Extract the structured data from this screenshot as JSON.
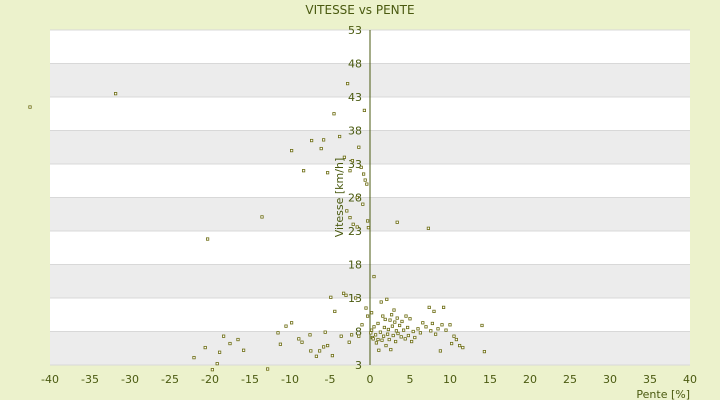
{
  "chart_data": {
    "type": "scatter",
    "title": "VITESSE vs PENTE",
    "xlabel": "Pente [%]",
    "ylabel": "Vitesse [km/h]",
    "xlim": [
      -40,
      40
    ],
    "ylim": [
      3,
      53
    ],
    "x_ticks": [
      -40,
      -35,
      -30,
      -25,
      -20,
      -15,
      -10,
      -5,
      0,
      5,
      10,
      15,
      20,
      25,
      30,
      35,
      40
    ],
    "y_ticks": [
      3,
      8,
      13,
      18,
      23,
      28,
      33,
      38,
      43,
      48,
      53
    ],
    "grid": true,
    "marker_color": "#6b6b10",
    "band_color": "#ececec",
    "points": [
      [
        -42.5,
        41.5
      ],
      [
        -31.8,
        43.5
      ],
      [
        -20.3,
        21.8
      ],
      [
        -13.5,
        25.1
      ],
      [
        -22,
        4.1
      ],
      [
        -20.6,
        5.6
      ],
      [
        -19.7,
        2.3
      ],
      [
        -19.1,
        3.2
      ],
      [
        -18.8,
        4.9
      ],
      [
        -18.3,
        7.3
      ],
      [
        -17.5,
        6.2
      ],
      [
        -16.5,
        6.8
      ],
      [
        -15.8,
        5.2
      ],
      [
        -12.8,
        2.4
      ],
      [
        -11.5,
        7.8
      ],
      [
        -11.2,
        6.1
      ],
      [
        -10.5,
        8.8
      ],
      [
        -9.8,
        9.3
      ],
      [
        -8.9,
        6.9
      ],
      [
        -8.5,
        6.4
      ],
      [
        -7.5,
        7.5
      ],
      [
        -7.4,
        5.1
      ],
      [
        -6.7,
        4.3
      ],
      [
        -6.3,
        5.1
      ],
      [
        -5.8,
        5.7
      ],
      [
        -5.3,
        5.9
      ],
      [
        -5.6,
        7.9
      ],
      [
        -4.7,
        4.4
      ],
      [
        -4.4,
        11
      ],
      [
        -4.9,
        13.1
      ],
      [
        -3.3,
        13.7
      ],
      [
        -3.6,
        7.3
      ],
      [
        -3,
        13.4
      ],
      [
        -2.6,
        6.4
      ],
      [
        -2.3,
        7.5
      ],
      [
        -1.8,
        13
      ],
      [
        -1.4,
        7.3
      ],
      [
        -1,
        9
      ],
      [
        -0.5,
        11.5
      ],
      [
        0.5,
        16.2
      ],
      [
        -0.3,
        10.3
      ],
      [
        0.2,
        10.8
      ],
      [
        -9.8,
        35
      ],
      [
        -8.3,
        32
      ],
      [
        -7.3,
        36.5
      ],
      [
        -6.1,
        35.3
      ],
      [
        -5.8,
        36.6
      ],
      [
        -5.3,
        31.7
      ],
      [
        -4.5,
        40.5
      ],
      [
        -3.8,
        37.1
      ],
      [
        -3.2,
        34
      ],
      [
        -2.8,
        45
      ],
      [
        -2.5,
        32
      ],
      [
        -2.2,
        33.5
      ],
      [
        -2.9,
        26
      ],
      [
        -2.5,
        25
      ],
      [
        -2.1,
        24
      ],
      [
        -1.6,
        28
      ],
      [
        -1.6,
        23.6
      ],
      [
        -1.4,
        35.5
      ],
      [
        -1.1,
        32.5
      ],
      [
        -0.8,
        31.5
      ],
      [
        -0.6,
        30.6
      ],
      [
        -0.4,
        30
      ],
      [
        -0.7,
        41
      ],
      [
        -0.3,
        24.5
      ],
      [
        -0.2,
        23.5
      ],
      [
        -0.9,
        27
      ],
      [
        3.4,
        24.3
      ],
      [
        7.3,
        23.4
      ],
      [
        0.1,
        7.8
      ],
      [
        0.2,
        8.2
      ],
      [
        0.3,
        7.1
      ],
      [
        0.4,
        6.9
      ],
      [
        0.5,
        8.7
      ],
      [
        0.7,
        7.5
      ],
      [
        0.8,
        6.3
      ],
      [
        1,
        9.2
      ],
      [
        1,
        6.8
      ],
      [
        1.1,
        5.2
      ],
      [
        1.3,
        7.9
      ],
      [
        1.4,
        12.4
      ],
      [
        1.5,
        6.7
      ],
      [
        1.6,
        10.3
      ],
      [
        1.7,
        7.3
      ],
      [
        1.8,
        8.6
      ],
      [
        1.9,
        9.8
      ],
      [
        2,
        5.9
      ],
      [
        2.1,
        12.8
      ],
      [
        2.2,
        7.6
      ],
      [
        2.3,
        8.3
      ],
      [
        2.4,
        6.8
      ],
      [
        2.5,
        9.7
      ],
      [
        2.6,
        5.3
      ],
      [
        2.7,
        10.5
      ],
      [
        2.8,
        8.8
      ],
      [
        2.9,
        7.4
      ],
      [
        3,
        11.2
      ],
      [
        3.1,
        9.4
      ],
      [
        3.2,
        6.5
      ],
      [
        3.3,
        8.1
      ],
      [
        3.4,
        10
      ],
      [
        3.5,
        7.7
      ],
      [
        3.7,
        8.9
      ],
      [
        3.9,
        7.2
      ],
      [
        4,
        9.5
      ],
      [
        4.2,
        8.2
      ],
      [
        4.4,
        6.9
      ],
      [
        4.5,
        10.3
      ],
      [
        4.7,
        8.6
      ],
      [
        4.8,
        7.4
      ],
      [
        5,
        9.9
      ],
      [
        5.2,
        6.5
      ],
      [
        5.4,
        8
      ],
      [
        5.6,
        7.1
      ],
      [
        6,
        8.4
      ],
      [
        6.3,
        7.8
      ],
      [
        6.6,
        9.3
      ],
      [
        7,
        8.7
      ],
      [
        7.4,
        11.6
      ],
      [
        7.6,
        8.1
      ],
      [
        7.8,
        9.2
      ],
      [
        8,
        11
      ],
      [
        8.2,
        7.6
      ],
      [
        8.5,
        8.4
      ],
      [
        8.8,
        5.1
      ],
      [
        9,
        9
      ],
      [
        9.2,
        11.6
      ],
      [
        9.5,
        8.2
      ],
      [
        10,
        9
      ],
      [
        10.2,
        6.2
      ],
      [
        10.5,
        7.3
      ],
      [
        10.8,
        6.8
      ],
      [
        11.2,
        5.9
      ],
      [
        11.6,
        5.6
      ],
      [
        14,
        8.9
      ],
      [
        14.3,
        5
      ]
    ]
  }
}
